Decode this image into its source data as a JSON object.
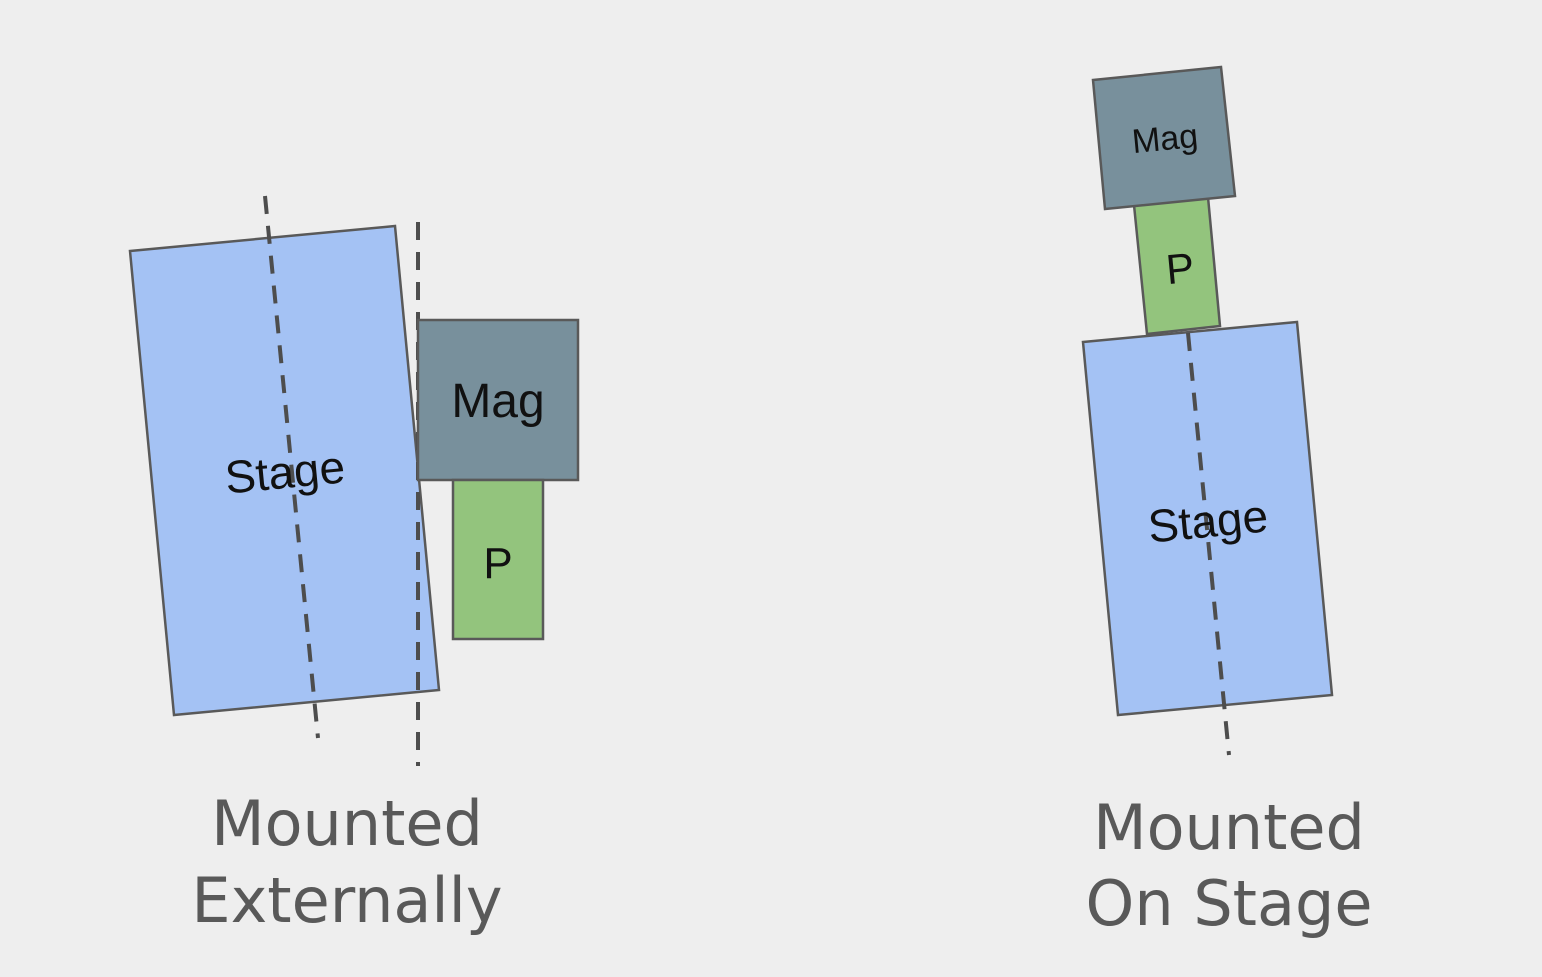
{
  "colors": {
    "background": "#eeeeee",
    "stage_fill": "#a4c2f4",
    "mag_fill": "#78909c",
    "p_fill": "#93c47d",
    "outline": "#595959",
    "dash": "#4d4d4d",
    "caption_text": "#595959",
    "label_text": "#111111"
  },
  "external": {
    "stage_label": "Stage",
    "mag_label": "Mag",
    "p_label": "P",
    "caption_line1": "Mounted",
    "caption_line2": "Externally"
  },
  "onstage": {
    "stage_label": "Stage",
    "mag_label": "Mag",
    "p_label": "P",
    "caption_line1": "Mounted",
    "caption_line2": "On Stage"
  }
}
